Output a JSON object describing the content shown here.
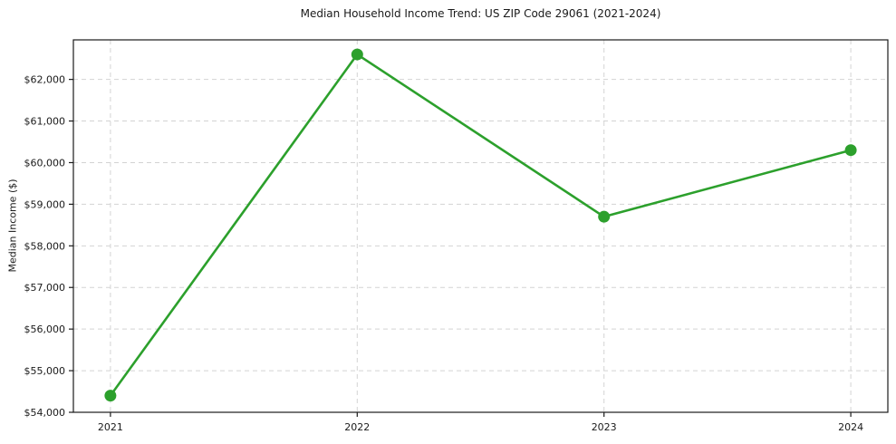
{
  "figure": {
    "title": "Median Household Income Trend: US ZIP Code 29061 (2021-2024)",
    "ylabel": "Median Income ($)"
  },
  "chart_data": {
    "type": "line",
    "title": "Median Household Income Trend: US ZIP Code 29061 (2021-2024)",
    "xlabel": "",
    "ylabel": "Median Income ($)",
    "categories": [
      "2021",
      "2022",
      "2023",
      "2024"
    ],
    "values": [
      54400,
      62600,
      58700,
      60300
    ],
    "ylim": [
      54000,
      62950
    ],
    "yticks": [
      54000,
      55000,
      56000,
      57000,
      58000,
      59000,
      60000,
      61000,
      62000
    ],
    "ytick_labels": [
      "$54,000",
      "$55,000",
      "$56,000",
      "$57,000",
      "$58,000",
      "$59,000",
      "$60,000",
      "$61,000",
      "$62,000"
    ],
    "grid": true,
    "grid_style": "dashed",
    "legend": false,
    "marker": "circle",
    "colors": {
      "line": "#2ca02c",
      "marker": "#2ca02c",
      "grid": "#d3d3d3",
      "axis": "#1a1a1a",
      "background": "#ffffff"
    }
  }
}
